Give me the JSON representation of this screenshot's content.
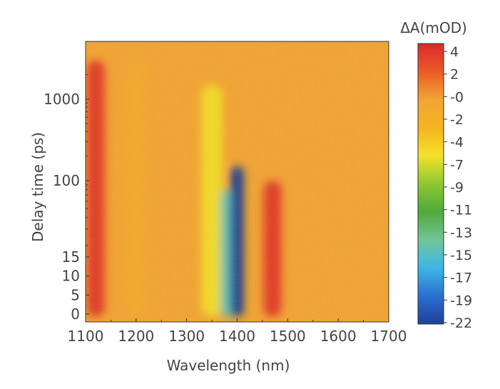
{
  "chart_data": {
    "type": "heatmap",
    "xlabel": "Wavelength (nm)",
    "ylabel": "Delay time (ps)",
    "x_range": [
      1100,
      1700
    ],
    "x_ticks": [
      1100,
      1200,
      1300,
      1400,
      1500,
      1600,
      1700
    ],
    "y_ticks": [
      {
        "value": 0,
        "label": "0"
      },
      {
        "value": 5,
        "label": "5"
      },
      {
        "value": 10,
        "label": "10"
      },
      {
        "value": 15,
        "label": "15"
      },
      {
        "value": 100,
        "label": "100"
      },
      {
        "value": 1000,
        "label": "1000"
      }
    ],
    "y_scale": "linear below 15 ps, logarithmic above",
    "y_max": 3000,
    "colorbar": {
      "title": "ΔA(mOD)",
      "ticks": [
        "4",
        "2",
        "-0",
        "-2",
        "-4",
        "-7",
        "-9",
        "-11",
        "-13",
        "-15",
        "-17",
        "-19",
        "-22"
      ],
      "range": [
        -22,
        4
      ],
      "colormap": [
        "#1f3f96",
        "#2a6fd1",
        "#3db6e6",
        "#72c69a",
        "#4fa83a",
        "#8fc832",
        "#f3e22b",
        "#f5b41f",
        "#f2a535",
        "#ec5a28",
        "#d9282d"
      ]
    },
    "features": [
      {
        "wavelength_nm": 1120,
        "delta_A": 3,
        "delay_range_ps": [
          0,
          3000
        ]
      },
      {
        "wavelength_nm": 1200,
        "delta_A": -2,
        "delay_range_ps": [
          0,
          3000
        ]
      },
      {
        "wavelength_nm": 1350,
        "delta_A": -6,
        "delay_range_ps": [
          0,
          1500
        ]
      },
      {
        "wavelength_nm": 1380,
        "delta_A": -15,
        "delay_range_ps": [
          0,
          80
        ]
      },
      {
        "wavelength_nm": 1400,
        "delta_A": -22,
        "delay_range_ps": [
          0,
          150
        ]
      },
      {
        "wavelength_nm": 1470,
        "delta_A": 3,
        "delay_range_ps": [
          0,
          100
        ]
      }
    ]
  }
}
